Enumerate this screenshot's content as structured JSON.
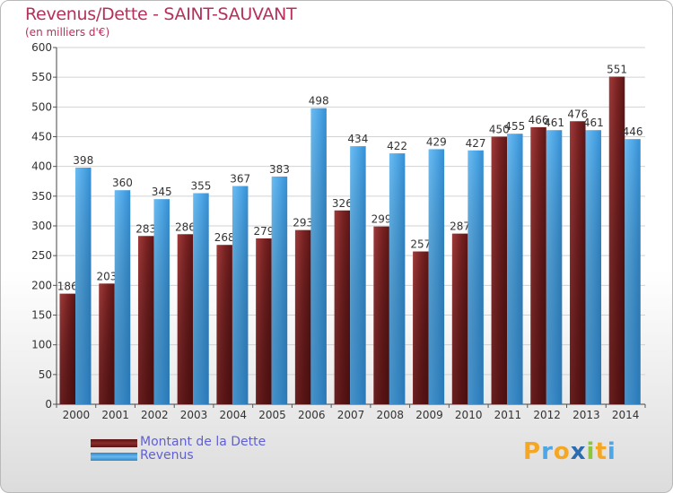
{
  "title": "Revenus/Dette - SAINT-SAUVANT",
  "subtitle": "(en milliers d'€)",
  "colors": {
    "dette": "#7b2222",
    "revenus": "#4da6e6",
    "axis_text": "#333333",
    "title": "#b5305a",
    "legend_text": "#5f5fd6"
  },
  "legend": [
    {
      "label": "Montant de la Dette",
      "color": "#7b2222"
    },
    {
      "label": "Revenus",
      "color": "#4da6e6"
    }
  ],
  "logo": {
    "text": "Proxiti",
    "letters": [
      {
        "ch": "P",
        "color": "#f5a623"
      },
      {
        "ch": "r",
        "color": "#4da6e6"
      },
      {
        "ch": "o",
        "color": "#f5a623"
      },
      {
        "ch": "x",
        "color": "#2b6cb0"
      },
      {
        "ch": "i",
        "color": "#8cc63f"
      },
      {
        "ch": "t",
        "color": "#f5a623"
      },
      {
        "ch": "i",
        "color": "#4da6e6"
      }
    ]
  },
  "chart_data": {
    "type": "bar",
    "title": "Revenus/Dette - SAINT-SAUVANT",
    "subtitle": "(en milliers d'€)",
    "xlabel": "",
    "ylabel": "",
    "categories": [
      "2000",
      "2001",
      "2002",
      "2003",
      "2004",
      "2005",
      "2006",
      "2007",
      "2008",
      "2009",
      "2010",
      "2011",
      "2012",
      "2013",
      "2014"
    ],
    "series": [
      {
        "name": "Montant de la Dette",
        "color": "#7b2222",
        "values": [
          186,
          203,
          283,
          286,
          268,
          279,
          293,
          326,
          299,
          257,
          287,
          450,
          466,
          476,
          551
        ]
      },
      {
        "name": "Revenus",
        "color": "#4da6e6",
        "values": [
          398,
          360,
          345,
          355,
          367,
          383,
          498,
          434,
          422,
          429,
          427,
          455,
          461,
          461,
          446
        ]
      }
    ],
    "ylim": [
      0,
      600
    ],
    "yticks": [
      0,
      50,
      100,
      150,
      200,
      250,
      300,
      350,
      400,
      450,
      500,
      550,
      600
    ],
    "grid": true,
    "legend_position": "bottom-left"
  }
}
